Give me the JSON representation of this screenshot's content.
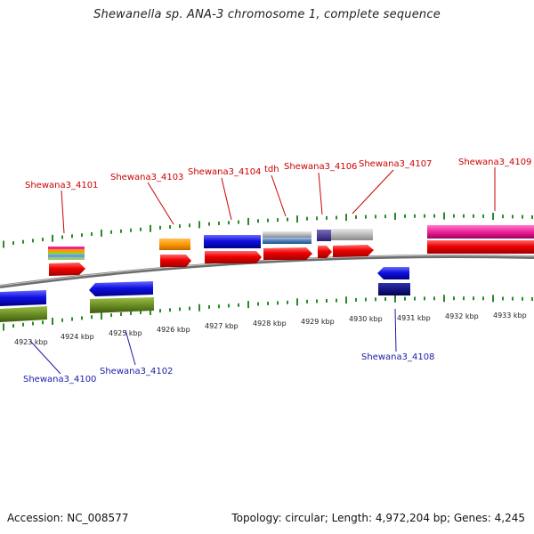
{
  "title": "Shewanella sp. ANA-3 chromosome 1, complete sequence",
  "footer": {
    "accession": "Accession: NC_008577",
    "summary": "Topology: circular; Length: 4,972,204 bp; Genes: 4,245"
  },
  "scale": {
    "unit": "kbp",
    "labels": [
      "4923 kbp",
      "4924 kbp",
      "4925 kbp",
      "4926 kbp",
      "4927 kbp",
      "4928 kbp",
      "4929 kbp",
      "4930 kbp",
      "4931 kbp",
      "4932 kbp",
      "4933 kbp"
    ]
  },
  "genes_forward": [
    {
      "name": "Shewana3_4101",
      "color": "#cc0000"
    },
    {
      "name": "Shewana3_4103",
      "color": "#cc0000"
    },
    {
      "name": "Shewana3_4104",
      "color": "#cc0000"
    },
    {
      "name": "tdh",
      "color": "#cc0000"
    },
    {
      "name": "Shewana3_4106",
      "color": "#cc0000"
    },
    {
      "name": "Shewana3_4107",
      "color": "#cc0000"
    },
    {
      "name": "Shewana3_4109",
      "color": "#cc0000"
    }
  ],
  "genes_reverse": [
    {
      "name": "Shewana3_4100",
      "color": "#1a1aa8"
    },
    {
      "name": "Shewana3_4102",
      "color": "#1a1aa8"
    },
    {
      "name": "Shewana3_4108",
      "color": "#1a1aa8"
    }
  ],
  "colors": {
    "forward_gene": "#ee0000",
    "reverse_gene": "#1010e0",
    "forward_label": "#cc0000",
    "reverse_label": "#1a1aa8",
    "tick": "#2a8a2a",
    "backbone": "#888888",
    "olive": "#6b8e23",
    "orange": "#ff9900",
    "magenta": "#ee2299",
    "steelblue": "#4a7fbf",
    "gray": "#bbbbbb",
    "purple": "#4b3b8f",
    "navy": "#000080"
  }
}
